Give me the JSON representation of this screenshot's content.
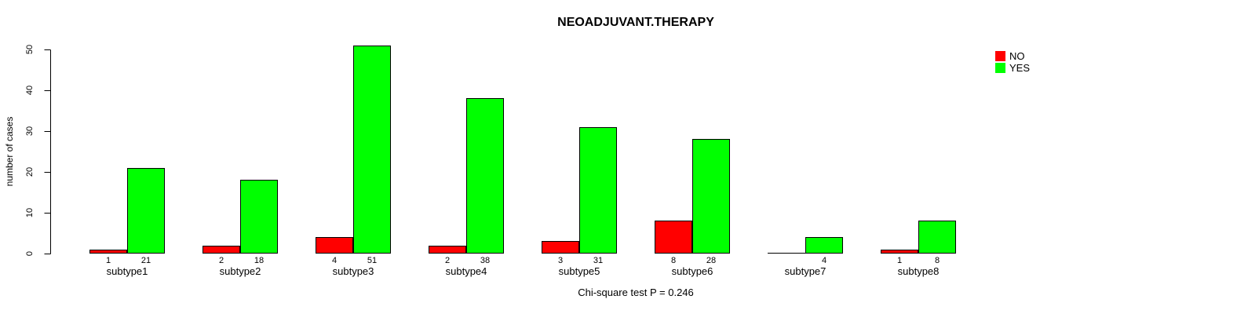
{
  "chart_data": {
    "type": "bar",
    "title": "NEOADJUVANT.THERAPY",
    "ylabel": "number of cases",
    "xlabel": "",
    "categories": [
      "subtype1",
      "subtype2",
      "subtype3",
      "subtype4",
      "subtype5",
      "subtype6",
      "subtype7",
      "subtype8"
    ],
    "series": [
      {
        "name": "NO",
        "color": "#ff0000",
        "values": [
          1,
          2,
          4,
          2,
          3,
          8,
          0,
          1
        ],
        "bar_labels": [
          "1",
          "2",
          "4",
          "2",
          "3",
          "8",
          "",
          "1"
        ]
      },
      {
        "name": "YES",
        "color": "#00ff00",
        "values": [
          21,
          18,
          51,
          38,
          31,
          28,
          4,
          8
        ],
        "bar_labels": [
          "21",
          "18",
          "51",
          "38",
          "31",
          "28",
          "4",
          "8"
        ]
      }
    ],
    "ylim": [
      0,
      50
    ],
    "yticks": [
      0,
      10,
      20,
      30,
      40,
      50
    ],
    "grid": false,
    "legend_position": "top-right",
    "bar_border_color": "#000000",
    "axis_color": "#000000",
    "caption": "Chi-square test P = 0.246"
  }
}
